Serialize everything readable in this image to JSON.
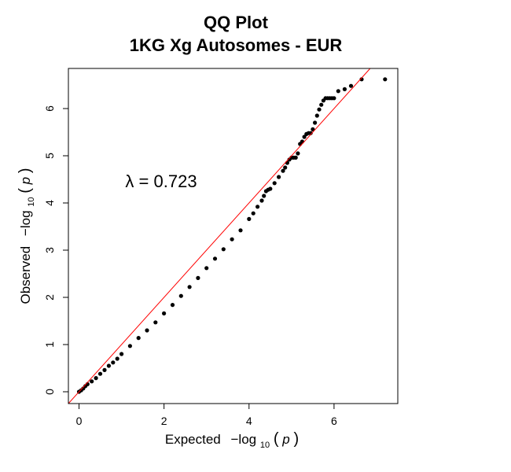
{
  "chart_data": {
    "type": "scatter",
    "title": "QQ Plot",
    "subtitle": "1KG Xg Autosomes - EUR",
    "xlabel": {
      "prefix": "Expected",
      "math": "−log",
      "sub": "10",
      "arg": "p"
    },
    "ylabel": {
      "prefix": "Observed",
      "math": "−log",
      "sub": "10",
      "arg": "p"
    },
    "xlim": [
      -0.25,
      7.5
    ],
    "ylim": [
      -0.25,
      6.85
    ],
    "xticks": [
      0,
      2,
      4,
      6
    ],
    "yticks": [
      0,
      1,
      2,
      3,
      4,
      5,
      6
    ],
    "annotation": "λ = 0.723",
    "reference_line": {
      "slope": 1,
      "intercept": 0,
      "color": "#ff0000"
    },
    "point_color": "#000000",
    "series": [
      {
        "x": [
          0.0,
          0.05,
          0.1,
          0.15,
          0.2,
          0.3,
          0.4,
          0.5,
          0.6,
          0.7,
          0.8,
          0.9,
          1.0,
          1.2,
          1.4,
          1.6,
          1.8,
          2.0,
          2.2,
          2.4,
          2.6,
          2.8,
          3.0,
          3.2,
          3.4,
          3.6,
          3.8,
          4.0,
          4.1,
          4.2,
          4.3,
          4.35,
          4.4,
          4.45,
          4.5,
          4.6,
          4.7,
          4.8,
          4.85,
          4.9,
          4.95,
          5.0,
          5.05,
          5.1,
          5.15,
          5.2,
          5.25,
          5.3,
          5.35,
          5.4,
          5.45,
          5.5,
          5.55,
          5.6,
          5.65,
          5.7,
          5.75,
          5.8,
          5.85,
          5.9,
          5.95,
          6.0,
          6.1,
          6.25,
          6.4,
          6.65,
          7.2
        ],
        "y": [
          0.0,
          0.03,
          0.07,
          0.12,
          0.16,
          0.22,
          0.29,
          0.38,
          0.46,
          0.55,
          0.62,
          0.7,
          0.8,
          0.97,
          1.14,
          1.3,
          1.47,
          1.66,
          1.84,
          2.03,
          2.22,
          2.41,
          2.62,
          2.82,
          3.02,
          3.23,
          3.42,
          3.66,
          3.78,
          3.92,
          4.05,
          4.15,
          4.25,
          4.28,
          4.3,
          4.42,
          4.55,
          4.68,
          4.75,
          4.85,
          4.92,
          4.96,
          4.96,
          4.96,
          5.05,
          5.25,
          5.3,
          5.4,
          5.46,
          5.48,
          5.48,
          5.56,
          5.7,
          5.85,
          5.98,
          6.08,
          6.17,
          6.22,
          6.22,
          6.22,
          6.22,
          6.22,
          6.37,
          6.41,
          6.48,
          6.62,
          6.62
        ]
      }
    ]
  }
}
